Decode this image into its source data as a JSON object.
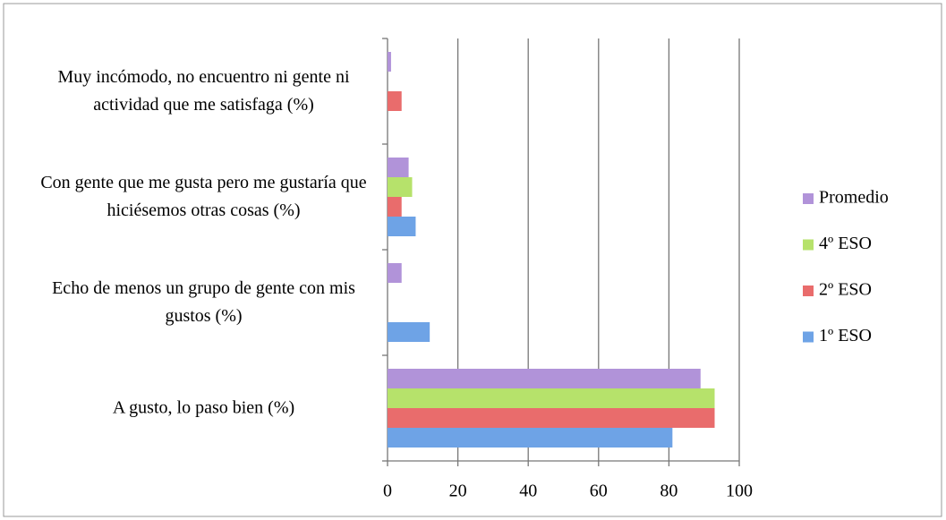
{
  "chart_data": {
    "type": "bar",
    "orientation": "horizontal",
    "categories": [
      "A gusto, lo paso bien (%)",
      "Echo de menos un grupo de gente con mis gustos (%)",
      "Con gente que me gusta pero me gustaría que hiciésemos otras cosas (%)",
      "Muy incómodo, no encuentro ni gente ni actividad que me satisfaga (%)"
    ],
    "series": [
      {
        "name": "1º ESO",
        "color": "#6ea3e6",
        "values": [
          81,
          12,
          8,
          0
        ]
      },
      {
        "name": "2º ESO",
        "color": "#e96c6c",
        "values": [
          93,
          0,
          4,
          4
        ]
      },
      {
        "name": "4º ESO",
        "color": "#b6e26b",
        "values": [
          93,
          0,
          7,
          0
        ]
      },
      {
        "name": "Promedio",
        "color": "#b193d9",
        "values": [
          89,
          4,
          6,
          1
        ]
      }
    ],
    "xlim": [
      0,
      100
    ],
    "xticks": [
      0,
      20,
      40,
      60,
      80,
      100
    ],
    "grid": true,
    "legend": "right"
  }
}
